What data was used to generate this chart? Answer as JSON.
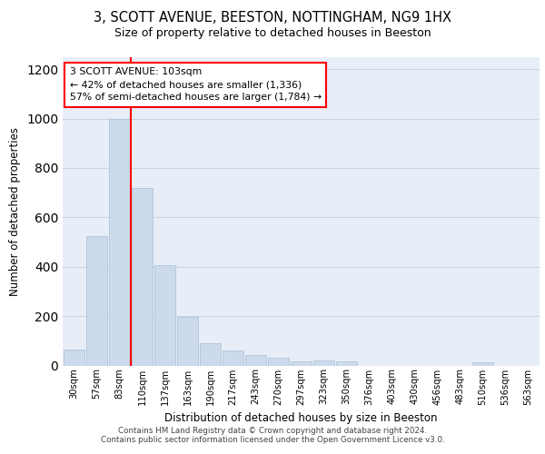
{
  "title_line1": "3, SCOTT AVENUE, BEESTON, NOTTINGHAM, NG9 1HX",
  "title_line2": "Size of property relative to detached houses in Beeston",
  "xlabel": "Distribution of detached houses by size in Beeston",
  "ylabel": "Number of detached properties",
  "footer_line1": "Contains HM Land Registry data © Crown copyright and database right 2024.",
  "footer_line2": "Contains public sector information licensed under the Open Government Licence v3.0.",
  "bar_labels": [
    "30sqm",
    "57sqm",
    "83sqm",
    "110sqm",
    "137sqm",
    "163sqm",
    "190sqm",
    "217sqm",
    "243sqm",
    "270sqm",
    "297sqm",
    "323sqm",
    "350sqm",
    "376sqm",
    "403sqm",
    "430sqm",
    "456sqm",
    "483sqm",
    "510sqm",
    "536sqm",
    "563sqm"
  ],
  "bar_values": [
    65,
    525,
    1000,
    720,
    405,
    197,
    90,
    62,
    42,
    32,
    18,
    20,
    15,
    0,
    0,
    0,
    0,
    0,
    12,
    0,
    0
  ],
  "bar_color": "#ccdaeb",
  "bar_edge_color": "#b0c4d8",
  "annotation_title": "3 SCOTT AVENUE: 103sqm",
  "annotation_line2": "← 42% of detached houses are smaller (1,336)",
  "annotation_line3": "57% of semi-detached houses are larger (1,784) →",
  "vline_x": 3.0,
  "ylim": [
    0,
    1250
  ],
  "yticks": [
    0,
    200,
    400,
    600,
    800,
    1000,
    1200
  ],
  "grid_color": "#c8d4e4",
  "bg_color": "#e8eef8"
}
